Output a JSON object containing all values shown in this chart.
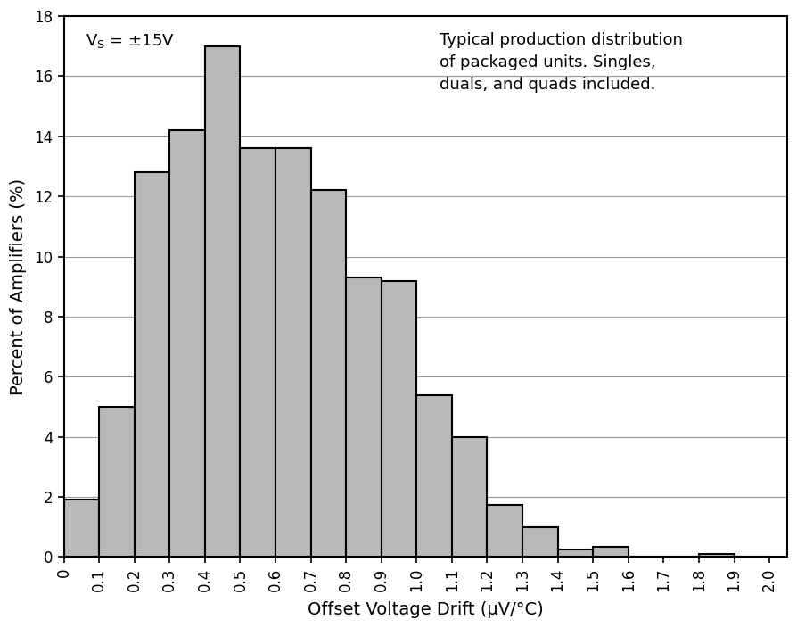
{
  "bar_lefts": [
    0.0,
    0.1,
    0.2,
    0.3,
    0.4,
    0.5,
    0.6,
    0.7,
    0.8,
    0.9,
    1.0,
    1.1,
    1.2,
    1.3,
    1.4,
    1.5,
    1.6,
    1.7,
    1.8,
    1.9
  ],
  "bar_values": [
    1.9,
    5.0,
    12.8,
    14.2,
    17.0,
    13.6,
    13.6,
    12.2,
    9.3,
    9.2,
    5.4,
    4.0,
    1.75,
    1.0,
    0.25,
    0.35,
    0.0,
    0.0,
    0.1,
    0.0
  ],
  "bar_width": 0.1,
  "bar_color": "#b8b8b8",
  "bar_edgecolor": "#000000",
  "bar_linewidth": 1.5,
  "xlabel": "Offset Voltage Drift (μV/°C)",
  "ylabel": "Percent of Amplifiers (%)",
  "xlim": [
    0,
    2.05
  ],
  "ylim": [
    0,
    18
  ],
  "yticks": [
    0,
    2,
    4,
    6,
    8,
    10,
    12,
    14,
    16,
    18
  ],
  "xtick_labels": [
    "0",
    "0.1",
    "0.2",
    "0.3",
    "0.4",
    "0.5",
    "0.6",
    "0.7",
    "0.8",
    "0.9",
    "1.0",
    "1.1",
    "1.2",
    "1.3",
    "1.4",
    "1.5",
    "1.6",
    "1.7",
    "1.8",
    "1.9",
    "2.0"
  ],
  "xtick_positions": [
    0.0,
    0.1,
    0.2,
    0.3,
    0.4,
    0.5,
    0.6,
    0.7,
    0.8,
    0.9,
    1.0,
    1.1,
    1.2,
    1.3,
    1.4,
    1.5,
    1.6,
    1.7,
    1.8,
    1.9,
    2.0
  ],
  "annotation_vs": "V$_\\mathrm{S}$ = ±15V",
  "annotation_text": "Typical production distribution\nof packaged units. Singles,\nduals, and quads included.",
  "background_color": "#ffffff",
  "grid_color": "#999999",
  "label_fontsize": 14,
  "tick_fontsize": 12,
  "annot_fontsize": 13
}
